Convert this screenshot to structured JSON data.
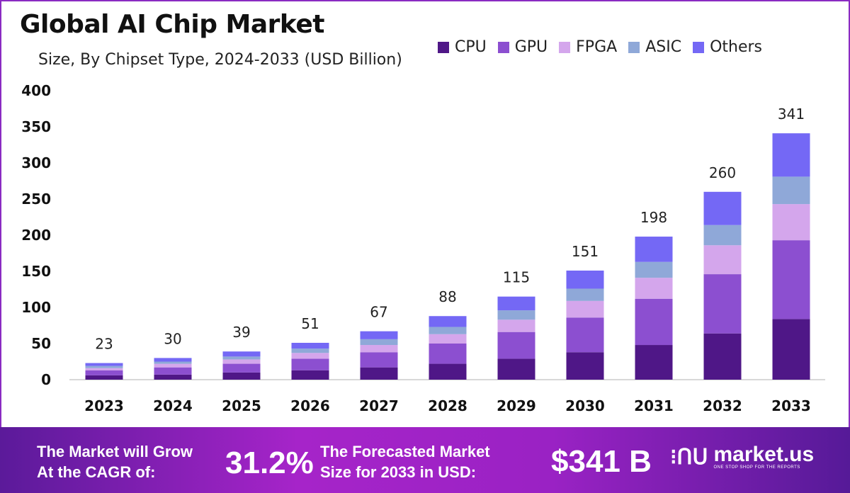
{
  "chart_data": {
    "type": "bar",
    "stacked": true,
    "title": "Global AI Chip Market",
    "subtitle": "Size, By Chipset Type, 2024-2033 (USD Billion)",
    "categories": [
      "2023",
      "2024",
      "2025",
      "2026",
      "2027",
      "2028",
      "2029",
      "2030",
      "2031",
      "2032",
      "2033"
    ],
    "series": [
      {
        "name": "CPU",
        "color": "#4f1787",
        "values": [
          6,
          7,
          10,
          13,
          17,
          22,
          29,
          38,
          48,
          64,
          84
        ]
      },
      {
        "name": "GPU",
        "color": "#8c4fd0",
        "values": [
          7,
          10,
          12,
          16,
          21,
          28,
          37,
          48,
          64,
          82,
          109
        ]
      },
      {
        "name": "FPGA",
        "color": "#d4a6ec",
        "values": [
          3,
          5,
          6,
          8,
          10,
          13,
          17,
          23,
          29,
          40,
          50
        ]
      },
      {
        "name": "ASIC",
        "color": "#8fa8d8",
        "values": [
          3,
          3,
          4,
          6,
          8,
          10,
          13,
          17,
          22,
          28,
          38
        ]
      },
      {
        "name": "Others",
        "color": "#7468f5",
        "values": [
          4,
          5,
          7,
          8,
          11,
          15,
          19,
          25,
          35,
          46,
          60
        ]
      }
    ],
    "totals": [
      "23",
      "30",
      "39",
      "51",
      "67",
      "88",
      "115",
      "151",
      "198",
      "260",
      "341"
    ],
    "yticks": [
      "0",
      "50",
      "100",
      "150",
      "200",
      "250",
      "300",
      "350",
      "400"
    ],
    "ylim": [
      0,
      400
    ],
    "grid": false,
    "legend": "top-right"
  },
  "footer": {
    "cagr_label_1": "The Market will Grow",
    "cagr_label_2": "At the CAGR of:",
    "cagr_value": "31.2%",
    "forecast_label_1": "The Forecasted Market",
    "forecast_label_2": "Size for 2033 in USD:",
    "forecast_value": "$341 B",
    "brand": "market.us",
    "brand_tagline": "ONE STOP SHOP FOR THE REPORTS"
  }
}
